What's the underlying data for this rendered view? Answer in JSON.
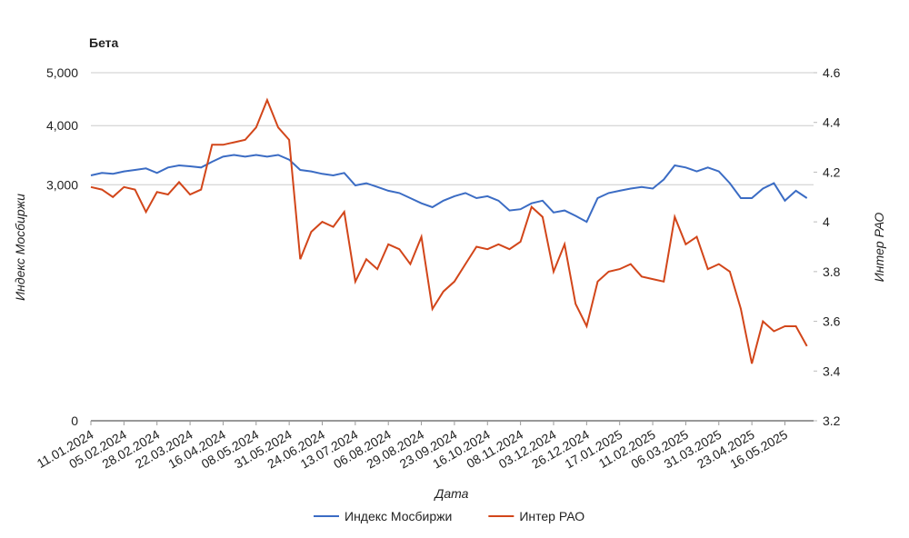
{
  "chart_data": {
    "type": "line",
    "title": "Бета",
    "x_label": "Дата",
    "y_label": "Индекс Мосбиржи",
    "y2_label": "Интер РАО",
    "yscale": "mirrorLog",
    "ylim": [
      0,
      5000
    ],
    "yticks": [
      0,
      {
        "value": 3000,
        "label": "3,000"
      },
      {
        "value": 4000,
        "label": "4,000"
      },
      {
        "value": 5000,
        "label": "5,000"
      }
    ],
    "y2lim": [
      3.2,
      4.6
    ],
    "y2ticks": [
      3.2,
      3.4,
      3.6,
      3.8,
      4,
      4.2,
      4.4,
      4.6
    ],
    "grid": true,
    "legend": "bottom",
    "categories": [
      "11.01.2024",
      null,
      null,
      "05.02.2024",
      null,
      null,
      "28.02.2024",
      null,
      null,
      "22.03.2024",
      null,
      null,
      "16.04.2024",
      null,
      null,
      "08.05.2024",
      null,
      null,
      "31.05.2024",
      null,
      null,
      "24.06.2024",
      null,
      null,
      "13.07.2024",
      null,
      null,
      "06.08.2024",
      null,
      null,
      "29.08.2024",
      null,
      null,
      "23.09.2024",
      null,
      null,
      "16.10.2024",
      null,
      null,
      "08.11.2024",
      null,
      null,
      "03.12.2024",
      null,
      null,
      "26.12.2024",
      null,
      null,
      "17.01.2025",
      null,
      null,
      "11.02.2025",
      null,
      null,
      "06.03.2025",
      null,
      null,
      "31.03.2025",
      null,
      null,
      "23.04.2025",
      null,
      null,
      "16.05.2025",
      null,
      null
    ],
    "series": [
      {
        "name": "Индекс Мосбиржи",
        "color": "#3b6cc4",
        "values": [
          3150,
          3190,
          3175,
          3215,
          3240,
          3265,
          3190,
          3280,
          3315,
          3300,
          3280,
          3375,
          3460,
          3490,
          3460,
          3490,
          3460,
          3490,
          3410,
          3240,
          3215,
          3175,
          3150,
          3190,
          2990,
          3025,
          2965,
          2905,
          2870,
          2790,
          2710,
          2650,
          2750,
          2820,
          2870,
          2790,
          2820,
          2750,
          2600,
          2620,
          2710,
          2750,
          2570,
          2600,
          2520,
          2430,
          2790,
          2870,
          2905,
          2940,
          2965,
          2940,
          3085,
          3315,
          3280,
          3215,
          3280,
          3215,
          3025,
          2790,
          2790,
          2940,
          3025,
          2750,
          2905,
          2790
        ]
      },
      {
        "name": "Интер РАО",
        "color": "#d2461a",
        "axis": "y2",
        "values": [
          4.14,
          4.13,
          4.1,
          4.14,
          4.13,
          4.04,
          4.12,
          4.11,
          4.16,
          4.11,
          4.13,
          4.31,
          4.31,
          4.32,
          4.33,
          4.38,
          4.49,
          4.38,
          4.33,
          3.85,
          3.96,
          4.0,
          3.98,
          4.04,
          3.76,
          3.85,
          3.81,
          3.91,
          3.89,
          3.83,
          3.94,
          3.65,
          3.72,
          3.76,
          3.83,
          3.9,
          3.89,
          3.91,
          3.89,
          3.92,
          4.06,
          4.02,
          3.8,
          3.91,
          3.67,
          3.58,
          3.76,
          3.8,
          3.81,
          3.83,
          3.78,
          3.77,
          3.76,
          4.02,
          3.91,
          3.94,
          3.81,
          3.83,
          3.8,
          3.65,
          3.43,
          3.6,
          3.56,
          3.58,
          3.58,
          3.5
        ]
      }
    ]
  }
}
